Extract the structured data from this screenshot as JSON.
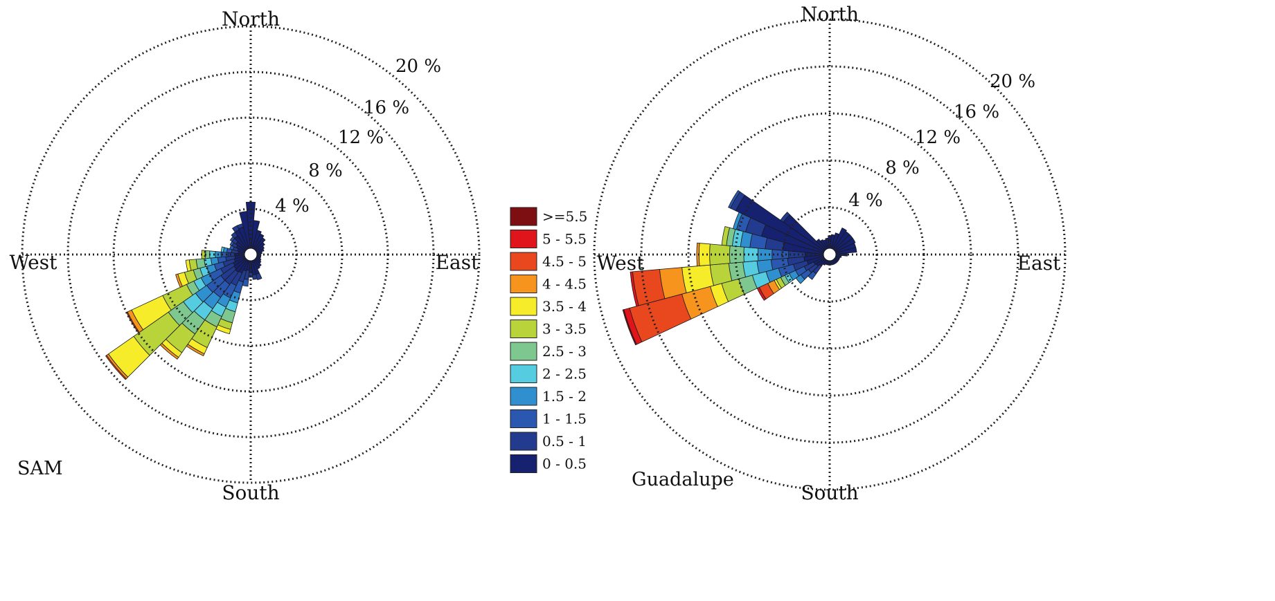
{
  "bin_colors": [
    "#16216f",
    "#223b8f",
    "#2a58b0",
    "#2f8fcf",
    "#56cce0",
    "#7ec88f",
    "#b9d33a",
    "#f6ec2a",
    "#f7941d",
    "#e9481f",
    "#e0151b",
    "#7d0f12"
  ],
  "legend": {
    "entries": [
      ">=5.5",
      "5 - 5.5",
      "4.5 - 5",
      "4 - 4.5",
      "3.5 - 4",
      "3 - 3.5",
      "2.5 - 3",
      "2 - 2.5",
      "1.5 - 2",
      "1 - 1.5",
      "0.5 - 1",
      "0 - 0.5"
    ],
    "placement": "center"
  },
  "chart_data": [
    {
      "type": "polar-bar",
      "title": "",
      "panel_label": "SAM",
      "direction_labels": {
        "north": "North",
        "east": "East",
        "south": "South",
        "west": "West"
      },
      "ring_labels": [
        "4 %",
        "8 %",
        "12 %",
        "16 %",
        "20 %"
      ],
      "rlim": [
        0,
        20
      ],
      "unit": "%",
      "sector_width_deg": 10,
      "petals": [
        {
          "direction": 0,
          "cumulative": [
            4.6
          ]
        },
        {
          "direction": 10,
          "cumulative": [
            3.0
          ]
        },
        {
          "direction": 20,
          "cumulative": [
            2.2
          ]
        },
        {
          "direction": 30,
          "cumulative": [
            2.0
          ]
        },
        {
          "direction": 40,
          "cumulative": [
            1.8
          ]
        },
        {
          "direction": 50,
          "cumulative": [
            1.5
          ]
        },
        {
          "direction": 60,
          "cumulative": [
            1.3
          ]
        },
        {
          "direction": 70,
          "cumulative": [
            1.2
          ]
        },
        {
          "direction": 80,
          "cumulative": [
            1.0
          ]
        },
        {
          "direction": 90,
          "cumulative": [
            0.9
          ]
        },
        {
          "direction": 100,
          "cumulative": [
            0.9
          ]
        },
        {
          "direction": 110,
          "cumulative": [
            0.9
          ]
        },
        {
          "direction": 120,
          "cumulative": [
            1.0
          ]
        },
        {
          "direction": 130,
          "cumulative": [
            1.1
          ]
        },
        {
          "direction": 140,
          "cumulative": [
            1.3
          ]
        },
        {
          "direction": 150,
          "cumulative": [
            1.4
          ]
        },
        {
          "direction": 160,
          "cumulative": [
            1.8,
            2.3
          ]
        },
        {
          "direction": 170,
          "cumulative": [
            1.8,
            2.2
          ]
        },
        {
          "direction": 180,
          "cumulative": [
            1.6,
            2.0
          ]
        },
        {
          "direction": 190,
          "cumulative": [
            1.4,
            2.2,
            2.8
          ]
        },
        {
          "direction": 200,
          "cumulative": [
            1.5,
            2.5,
            3.5,
            4.4,
            5.2,
            6.2,
            6.8,
            7.2
          ]
        },
        {
          "direction": 210,
          "cumulative": [
            1.8,
            3.0,
            4.2,
            5.1,
            6.0,
            7.0,
            9.0,
            9.6,
            9.8
          ]
        },
        {
          "direction": 220,
          "cumulative": [
            1.9,
            3.2,
            4.6,
            5.8,
            7.0,
            8.5,
            10.5,
            11.0,
            11.2
          ]
        },
        {
          "direction": 230,
          "cumulative": [
            1.8,
            3.2,
            4.7,
            5.9,
            7.2,
            8.8,
            12.5,
            15.2,
            15.4,
            15.5
          ]
        },
        {
          "direction": 240,
          "cumulative": [
            1.7,
            2.9,
            4.0,
            4.8,
            5.5,
            6.2,
            8.5,
            11.5,
            11.9,
            12.0
          ]
        },
        {
          "direction": 250,
          "cumulative": [
            1.5,
            2.5,
            3.3,
            4.0,
            4.6,
            5.2,
            6.0,
            6.6,
            6.8
          ]
        },
        {
          "direction": 260,
          "cumulative": [
            1.4,
            2.2,
            2.9,
            3.5,
            4.1,
            4.8,
            5.4,
            5.7
          ]
        },
        {
          "direction": 270,
          "cumulative": [
            1.3,
            2.0,
            2.6,
            3.1,
            3.6,
            4.0,
            4.3
          ]
        },
        {
          "direction": 280,
          "cumulative": [
            1.1,
            1.7,
            2.1,
            2.4,
            2.6
          ]
        },
        {
          "direction": 290,
          "cumulative": [
            1.2,
            1.6,
            1.9
          ]
        },
        {
          "direction": 300,
          "cumulative": [
            1.4,
            1.8,
            2.0
          ]
        },
        {
          "direction": 310,
          "cumulative": [
            1.6,
            2.0,
            2.2
          ]
        },
        {
          "direction": 320,
          "cumulative": [
            2.0,
            2.4
          ]
        },
        {
          "direction": 330,
          "cumulative": [
            2.4,
            2.8
          ]
        },
        {
          "direction": 340,
          "cumulative": [
            2.5,
            2.8
          ]
        },
        {
          "direction": 350,
          "cumulative": [
            3.8
          ]
        }
      ]
    },
    {
      "type": "polar-bar",
      "title": "",
      "panel_label": "Guadalupe",
      "direction_labels": {
        "north": "North",
        "east": "East",
        "south": "South",
        "west": "West"
      },
      "ring_labels": [
        "4 %",
        "8 %",
        "12 %",
        "16 %",
        "20 %"
      ],
      "rlim": [
        0,
        20
      ],
      "unit": "%",
      "sector_width_deg": 10,
      "petals": [
        {
          "direction": 0,
          "cumulative": [
            1.6
          ]
        },
        {
          "direction": 10,
          "cumulative": [
            1.7
          ]
        },
        {
          "direction": 20,
          "cumulative": [
            1.9
          ]
        },
        {
          "direction": 30,
          "cumulative": [
            2.5
          ]
        },
        {
          "direction": 40,
          "cumulative": [
            2.4
          ]
        },
        {
          "direction": 50,
          "cumulative": [
            2.4
          ]
        },
        {
          "direction": 60,
          "cumulative": [
            2.4
          ]
        },
        {
          "direction": 70,
          "cumulative": [
            2.3
          ]
        },
        {
          "direction": 80,
          "cumulative": [
            2.3
          ]
        },
        {
          "direction": 90,
          "cumulative": [
            1.5
          ]
        },
        {
          "direction": 100,
          "cumulative": [
            1.0
          ]
        },
        {
          "direction": 110,
          "cumulative": [
            0.9
          ]
        },
        {
          "direction": 120,
          "cumulative": [
            0.9
          ]
        },
        {
          "direction": 130,
          "cumulative": [
            0.9
          ]
        },
        {
          "direction": 140,
          "cumulative": [
            0.9
          ]
        },
        {
          "direction": 150,
          "cumulative": [
            0.9
          ]
        },
        {
          "direction": 160,
          "cumulative": [
            0.9
          ]
        },
        {
          "direction": 170,
          "cumulative": [
            0.9
          ]
        },
        {
          "direction": 180,
          "cumulative": [
            0.9
          ]
        },
        {
          "direction": 190,
          "cumulative": [
            0.9
          ]
        },
        {
          "direction": 200,
          "cumulative": [
            0.9
          ]
        },
        {
          "direction": 210,
          "cumulative": [
            1.0
          ]
        },
        {
          "direction": 220,
          "cumulative": [
            1.2,
            2.0,
            2.6
          ]
        },
        {
          "direction": 230,
          "cumulative": [
            1.4,
            2.2,
            3.0,
            3.5
          ]
        },
        {
          "direction": 240,
          "cumulative": [
            1.5,
            2.4,
            3.2,
            3.8,
            4.2,
            4.6,
            5.0,
            5.2,
            5.8,
            6.6,
            6.8
          ]
        },
        {
          "direction": 250,
          "cumulative": [
            2.0,
            3.2,
            4.5,
            5.6,
            6.8,
            8.0,
            9.5,
            10.5,
            13.0,
            17.6,
            18.1,
            18.2
          ]
        },
        {
          "direction": 260,
          "cumulative": [
            2.2,
            3.6,
            5.0,
            6.2,
            7.4,
            8.6,
            10.2,
            12.6,
            14.5,
            16.8,
            17.0
          ]
        },
        {
          "direction": 270,
          "cumulative": [
            2.1,
            3.5,
            4.9,
            6.1,
            7.3,
            8.5,
            10.2,
            11.1,
            11.3
          ]
        },
        {
          "direction": 280,
          "cumulative": [
            4.0,
            5.5,
            6.8,
            7.6,
            8.3,
            8.8,
            9.2
          ]
        },
        {
          "direction": 290,
          "cumulative": [
            6.0,
            7.4,
            8.2,
            8.5
          ]
        },
        {
          "direction": 300,
          "cumulative": [
            8.8,
            9.3,
            9.5
          ]
        },
        {
          "direction": 310,
          "cumulative": [
            4.8,
            5.1
          ]
        },
        {
          "direction": 320,
          "cumulative": [
            1.6
          ]
        },
        {
          "direction": 330,
          "cumulative": [
            1.4
          ]
        },
        {
          "direction": 340,
          "cumulative": [
            1.3
          ]
        },
        {
          "direction": 350,
          "cumulative": [
            1.4
          ]
        }
      ]
    }
  ]
}
